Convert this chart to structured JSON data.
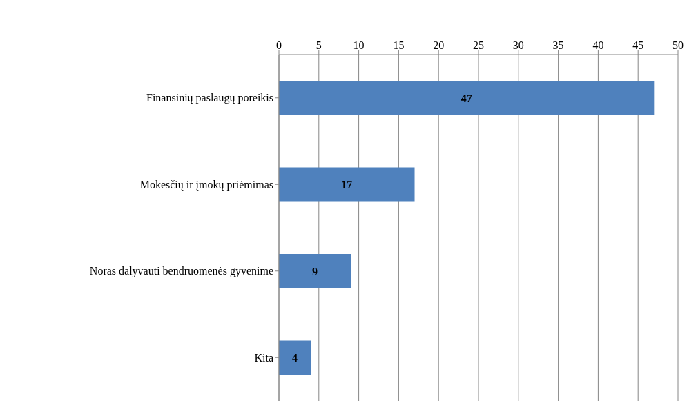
{
  "chart_data": {
    "type": "bar",
    "orientation": "horizontal",
    "categories": [
      "Finansinių paslaugų poreikis",
      "Mokesčių ir įmokų priėmimas",
      "Noras dalyvauti bendruomenės gyvenime",
      "Kita"
    ],
    "values": [
      47,
      17,
      9,
      4
    ],
    "color": "#4f81bd",
    "xlim": [
      0,
      50
    ],
    "xticks": [
      0,
      5,
      10,
      15,
      20,
      25,
      30,
      35,
      40,
      45,
      50
    ],
    "grid": "x",
    "data_labels": true
  }
}
